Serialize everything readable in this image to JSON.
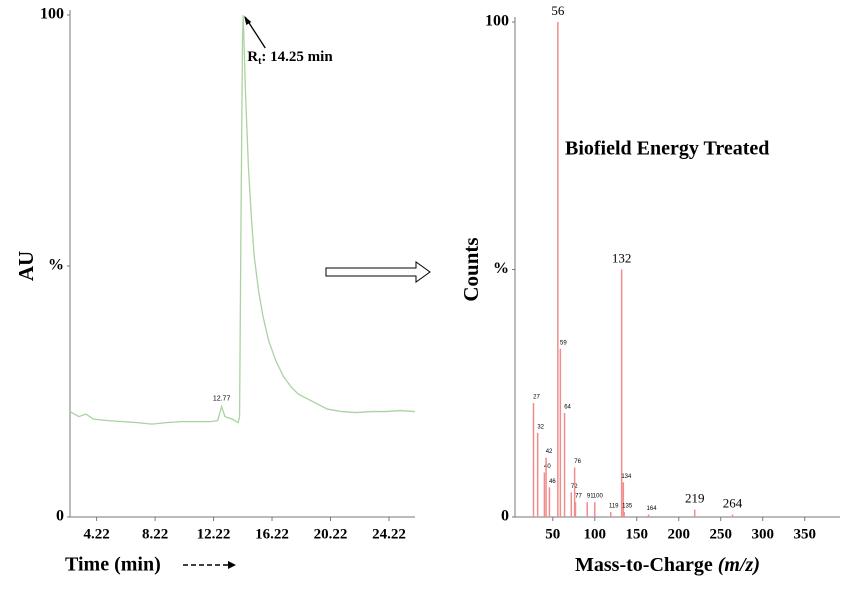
{
  "chart_data": [
    {
      "type": "line",
      "ylabel": "AU",
      "xlabel": "Time (min)",
      "annotation": [
        "R",
        "t",
        ": 14.25 min"
      ],
      "annotation_x": 14.25,
      "peak_labels": [
        12.77
      ],
      "x": [
        2.4,
        3,
        3.5,
        4,
        5,
        6,
        7,
        8,
        9,
        10,
        11,
        12,
        12.5,
        12.77,
        13,
        13.5,
        13.9,
        14.0,
        14.1,
        14.2,
        14.25,
        14.4,
        14.6,
        14.8,
        15,
        15.3,
        15.6,
        16,
        16.5,
        17,
        17.5,
        18,
        19,
        20,
        21,
        22,
        23,
        24,
        25,
        26
      ],
      "series": [
        {
          "color": "#a9d3a1",
          "values": [
            21,
            20,
            20.5,
            19.5,
            19.2,
            19,
            18.8,
            18.5,
            18.8,
            19,
            19,
            19,
            19.2,
            22,
            20,
            19.5,
            18.8,
            20,
            60,
            95,
            100,
            85,
            70,
            60,
            52,
            45,
            40,
            35,
            31,
            28,
            26,
            24.5,
            23,
            21.5,
            21,
            20.8,
            21,
            21,
            21.2,
            21
          ]
        }
      ],
      "xlim": [
        2.4,
        26.0
      ],
      "xticks": [
        4.22,
        8.22,
        12.22,
        16.22,
        20.22,
        24.22
      ],
      "ylim": [
        0,
        100
      ],
      "yticks": [
        0,
        {
          "value": 50,
          "label": "%"
        },
        100
      ]
    },
    {
      "type": "bar",
      "ylabel": "Counts",
      "xlabel": "Mass-to-Charge (m/z)",
      "annotation": "Biofield Energy Treated",
      "x": [
        27,
        32,
        40,
        42,
        46,
        56,
        59,
        64,
        72,
        76,
        77,
        91,
        100,
        119,
        132,
        134,
        135,
        164,
        219,
        264
      ],
      "values": [
        23,
        17,
        9,
        12,
        6,
        100,
        34,
        21,
        5,
        10,
        3,
        3,
        3,
        1,
        50,
        7,
        1,
        0.5,
        1.5,
        0.5
      ],
      "color": "#f08c8c",
      "xlim": [
        5,
        392
      ],
      "xticks": [
        50,
        100,
        150,
        200,
        250,
        300,
        350
      ],
      "ylim": [
        0,
        100
      ],
      "yticks": [
        0,
        {
          "value": 50,
          "label": "%"
        },
        100
      ]
    }
  ]
}
